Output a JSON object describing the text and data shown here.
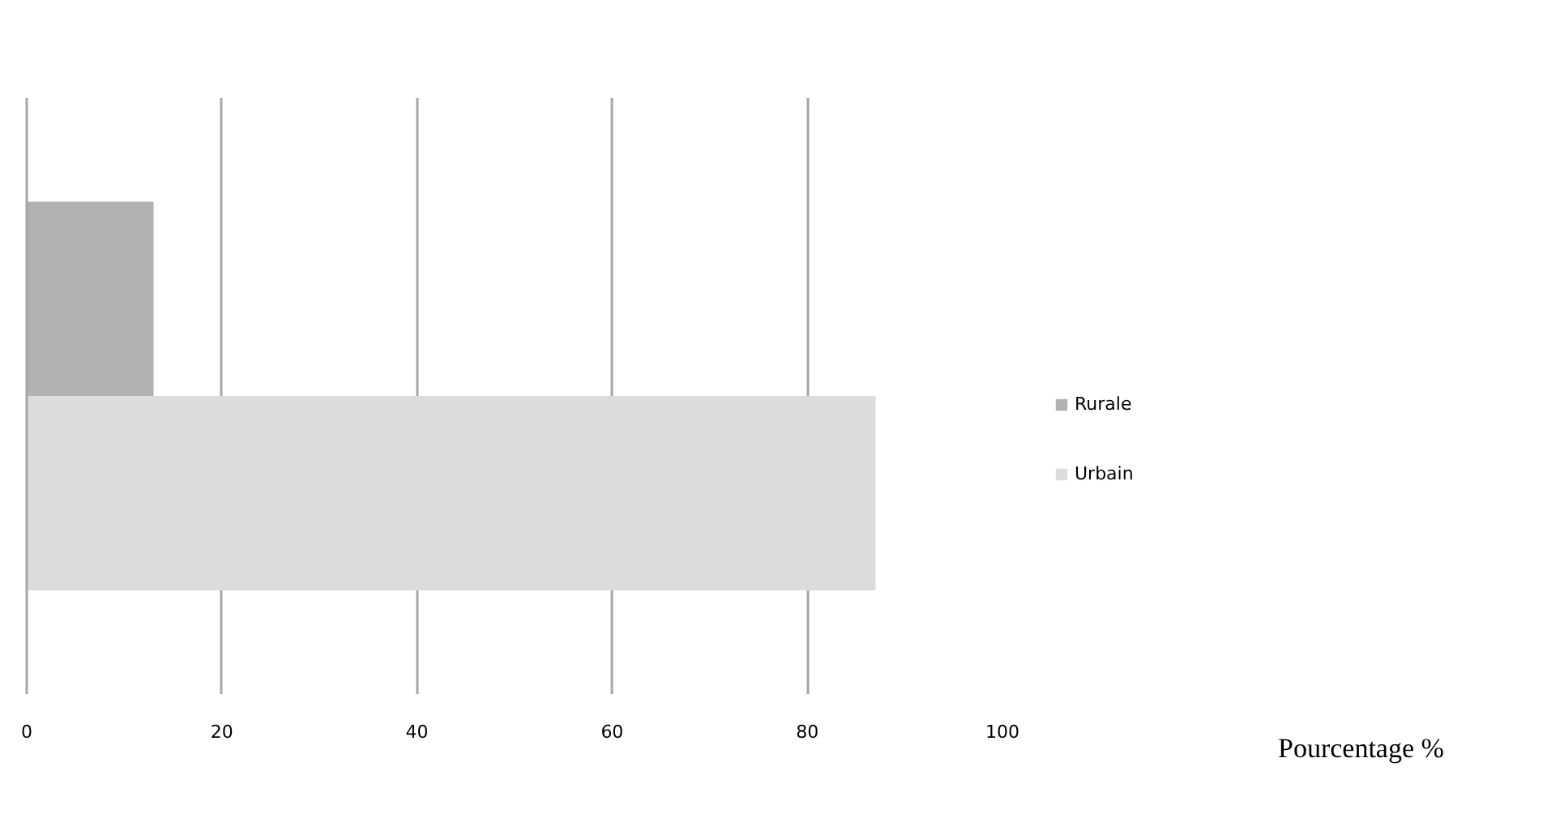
{
  "chart_data": {
    "type": "bar",
    "orientation": "horizontal",
    "categories": [
      null
    ],
    "series": [
      {
        "name": "Rurale",
        "color": "#b2b2b2",
        "values": [
          13
        ]
      },
      {
        "name": "Urbain",
        "color": "#dcdcdc",
        "values": [
          87
        ]
      }
    ],
    "annotations": [
      "Pourcentage %"
    ],
    "xlim": [
      0,
      100
    ],
    "xticks": [
      0,
      20,
      40,
      60,
      80,
      100
    ],
    "grid": "x",
    "legend": "right"
  }
}
